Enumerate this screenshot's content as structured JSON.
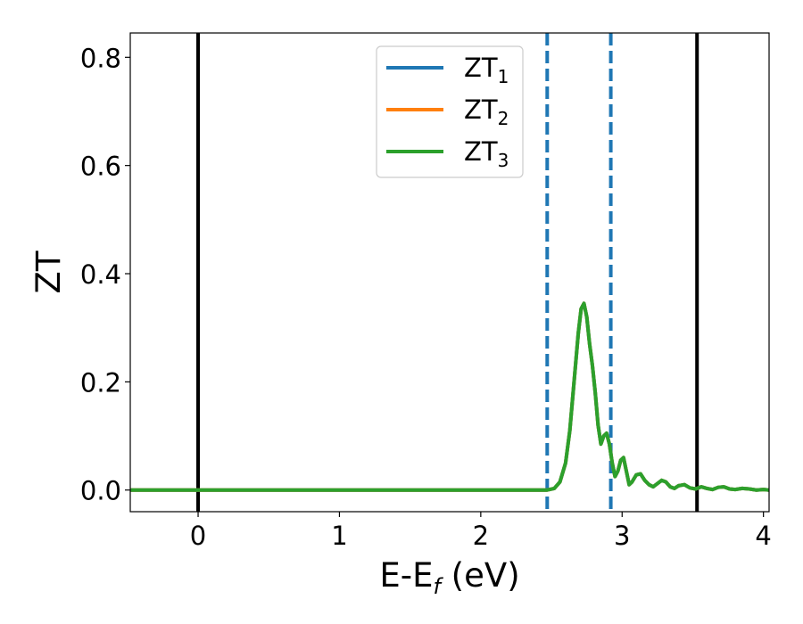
{
  "chart_data": {
    "type": "line",
    "xlabel": {
      "main": "E-E",
      "sub": "f",
      "suffix": " (eV)"
    },
    "ylabel": "ZT",
    "xlim": [
      -0.48,
      4.04
    ],
    "ylim": [
      -0.04,
      0.845
    ],
    "xticks": [
      0,
      1,
      2,
      3,
      4
    ],
    "xtick_labels": [
      "0",
      "1",
      "2",
      "3",
      "4"
    ],
    "yticks": [
      0.0,
      0.2,
      0.4,
      0.6,
      0.8
    ],
    "ytick_labels": [
      "0.0",
      "0.2",
      "0.4",
      "0.6",
      "0.8"
    ],
    "grid": false,
    "legend_position": "top-center",
    "vlines_solid": [
      0.0,
      3.53
    ],
    "vlines_dashed": [
      2.47,
      2.92
    ],
    "colors": {
      "series1": "#1f77b4",
      "series2": "#ff7f0e",
      "series3": "#2ca02c",
      "solid_line": "#000000",
      "dashed_line": "#1f77b4"
    },
    "series": [
      {
        "name": "ZT",
        "sub": "1",
        "color": "#1f77b4"
      },
      {
        "name": "ZT",
        "sub": "2",
        "color": "#ff7f0e"
      },
      {
        "name": "ZT",
        "sub": "3",
        "color": "#2ca02c"
      }
    ],
    "x": [
      -0.48,
      2.4,
      2.47,
      2.52,
      2.56,
      2.6,
      2.63,
      2.66,
      2.69,
      2.71,
      2.73,
      2.75,
      2.77,
      2.79,
      2.81,
      2.83,
      2.85,
      2.87,
      2.89,
      2.91,
      2.93,
      2.95,
      2.97,
      2.99,
      3.01,
      3.03,
      3.05,
      3.07,
      3.1,
      3.13,
      3.16,
      3.19,
      3.22,
      3.25,
      3.28,
      3.31,
      3.34,
      3.37,
      3.4,
      3.44,
      3.48,
      3.52,
      3.56,
      3.6,
      3.64,
      3.68,
      3.72,
      3.76,
      3.8,
      3.85,
      3.9,
      3.95,
      4.0,
      4.04
    ],
    "y": [
      0.0,
      0.0,
      0.0,
      0.003,
      0.015,
      0.05,
      0.11,
      0.2,
      0.29,
      0.335,
      0.345,
      0.32,
      0.27,
      0.23,
      0.18,
      0.12,
      0.085,
      0.1,
      0.105,
      0.085,
      0.05,
      0.025,
      0.035,
      0.055,
      0.06,
      0.035,
      0.01,
      0.015,
      0.028,
      0.03,
      0.018,
      0.01,
      0.006,
      0.012,
      0.018,
      0.015,
      0.006,
      0.003,
      0.008,
      0.01,
      0.004,
      0.002,
      0.006,
      0.003,
      0.001,
      0.005,
      0.006,
      0.002,
      0.001,
      0.003,
      0.002,
      0.0,
      0.001,
      0.0
    ]
  }
}
